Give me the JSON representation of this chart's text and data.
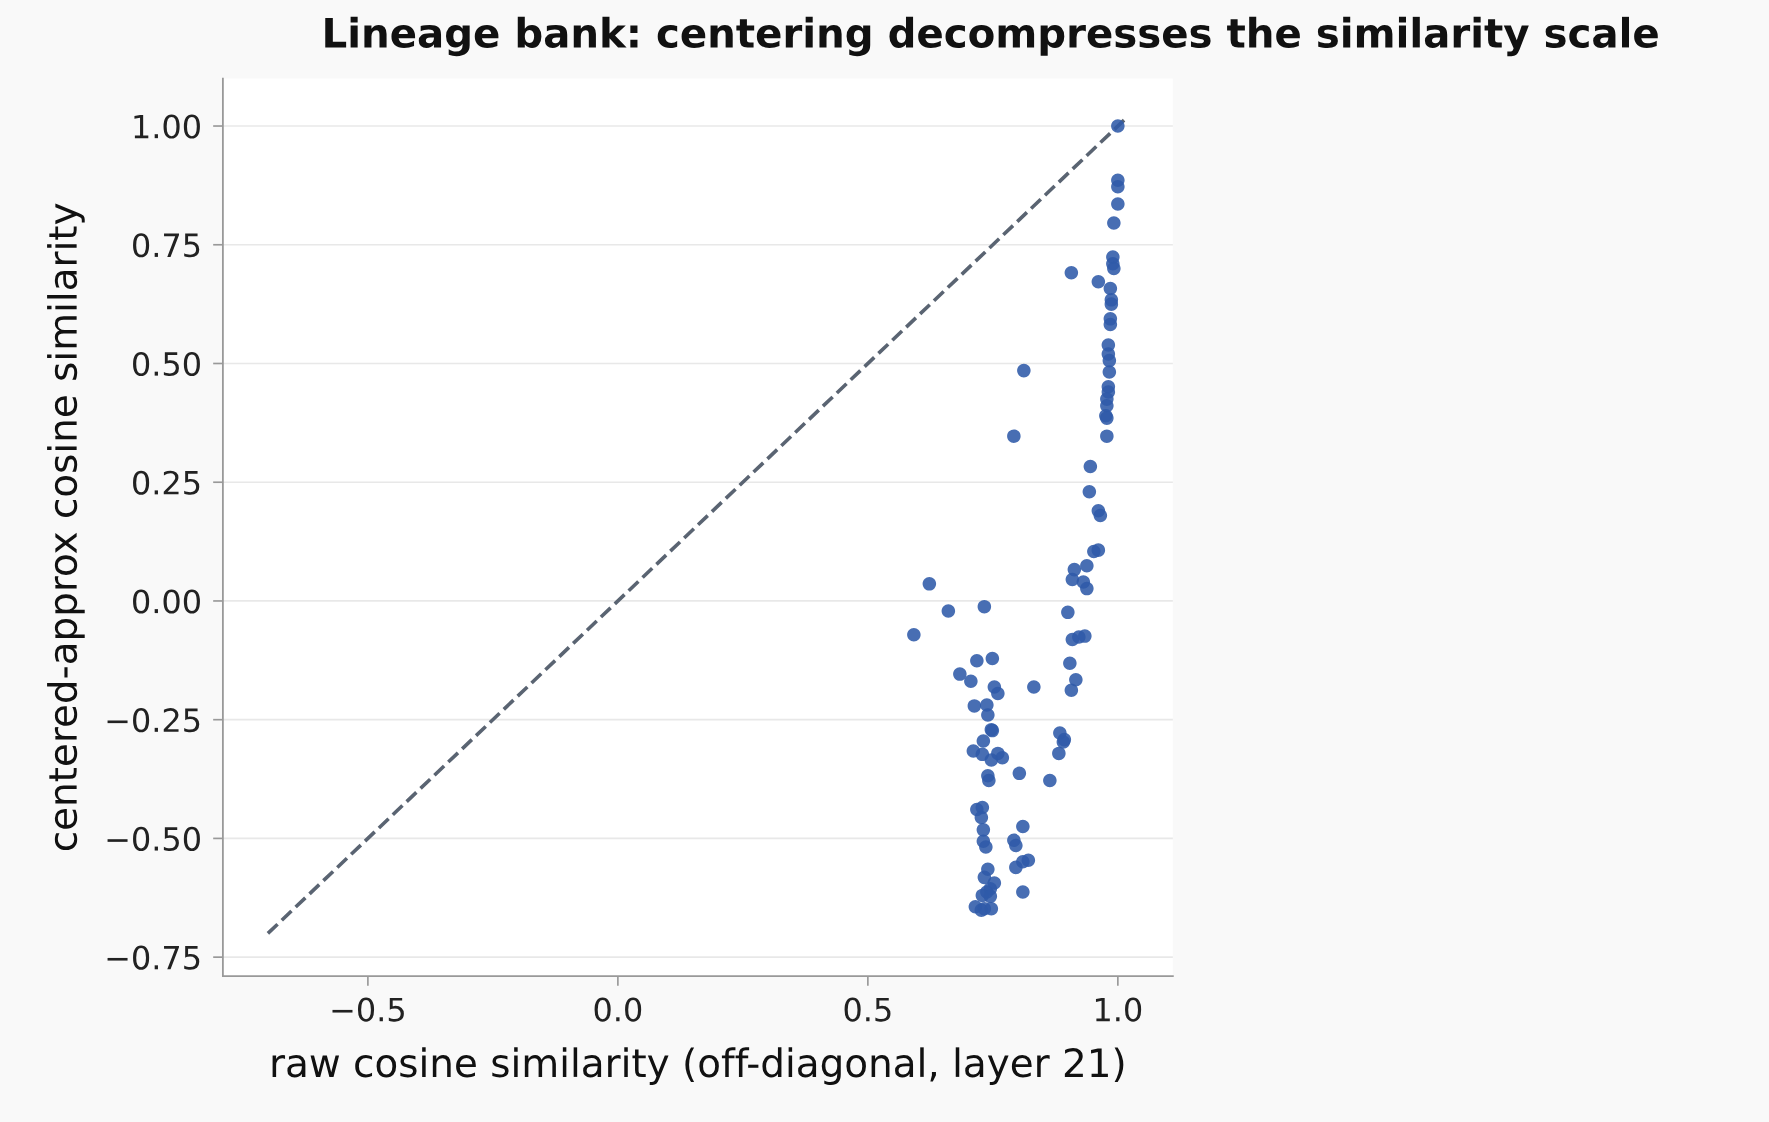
{
  "chart_data": {
    "type": "scatter",
    "title": "Lineage bank: centering decompresses the similarity scale",
    "xlabel": "raw cosine similarity (off-diagonal, layer 21)",
    "ylabel": "centered-approx cosine similarity",
    "xlim": [
      -0.79,
      1.11
    ],
    "ylim": [
      -0.79,
      1.1
    ],
    "xticks": [
      {
        "value": -0.5,
        "label": "−0.5"
      },
      {
        "value": 0,
        "label": "0.0"
      },
      {
        "value": 0.5,
        "label": "0.5"
      },
      {
        "value": 1.0,
        "label": "1.0"
      }
    ],
    "yticks": [
      {
        "value": -0.75,
        "label": "−0.75"
      },
      {
        "value": -0.5,
        "label": "−0.50"
      },
      {
        "value": -0.25,
        "label": "−0.25"
      },
      {
        "value": 0,
        "label": "0.00"
      },
      {
        "value": 0.25,
        "label": "0.25"
      },
      {
        "value": 0.5,
        "label": "0.50"
      },
      {
        "value": 0.75,
        "label": "0.75"
      },
      {
        "value": 1.0,
        "label": "1.00"
      }
    ],
    "grid": "y",
    "marker": "circle",
    "series": [
      {
        "type": "line",
        "color": "#5a6472",
        "line_style": "dashed",
        "marker": "none",
        "x": [
          -0.7,
          1.02
        ],
        "values": [
          -0.7,
          1.02
        ]
      },
      {
        "color": "#2f5aa8",
        "x": [
          1.0,
          1.0,
          1.0,
          1.0,
          0.992,
          0.907,
          0.961,
          0.99,
          0.99,
          0.992,
          0.985,
          0.987,
          0.987,
          0.985,
          0.985,
          0.981,
          0.981,
          0.983,
          0.983,
          0.812,
          0.981,
          0.981,
          0.978,
          0.978,
          0.976,
          0.978,
          0.792,
          0.978,
          0.945,
          0.943,
          0.961,
          0.965,
          0.952,
          0.961,
          0.938,
          0.913,
          0.909,
          0.931,
          0.938,
          0.623,
          0.661,
          0.733,
          0.9,
          0.592,
          0.909,
          0.922,
          0.934,
          0.718,
          0.749,
          0.684,
          0.706,
          0.904,
          0.916,
          0.753,
          0.76,
          0.832,
          0.907,
          0.713,
          0.738,
          0.74,
          0.747,
          0.749,
          0.884,
          0.893,
          0.891,
          0.882,
          0.731,
          0.711,
          0.729,
          0.76,
          0.769,
          0.747,
          0.803,
          0.864,
          0.74,
          0.742,
          0.718,
          0.729,
          0.727,
          0.731,
          0.731,
          0.736,
          0.81,
          0.792,
          0.796,
          0.81,
          0.821,
          0.796,
          0.74,
          0.733,
          0.745,
          0.738,
          0.729,
          0.745,
          0.81,
          0.715,
          0.727,
          0.733,
          0.747,
          0.753
        ],
        "values": [
          1.0,
          0.886,
          0.872,
          0.836,
          0.796,
          0.691,
          0.672,
          0.724,
          0.71,
          0.7,
          0.658,
          0.634,
          0.625,
          0.594,
          0.582,
          0.539,
          0.52,
          0.506,
          0.482,
          0.485,
          0.451,
          0.44,
          0.425,
          0.411,
          0.39,
          0.385,
          0.347,
          0.347,
          0.283,
          0.23,
          0.19,
          0.18,
          0.104,
          0.107,
          0.074,
          0.066,
          0.045,
          0.04,
          0.026,
          0.036,
          -0.021,
          -0.012,
          -0.024,
          -0.071,
          -0.081,
          -0.076,
          -0.074,
          -0.126,
          -0.121,
          -0.154,
          -0.169,
          -0.131,
          -0.166,
          -0.181,
          -0.195,
          -0.181,
          -0.188,
          -0.221,
          -0.219,
          -0.24,
          -0.271,
          -0.273,
          -0.278,
          -0.292,
          -0.297,
          -0.321,
          -0.295,
          -0.316,
          -0.323,
          -0.321,
          -0.33,
          -0.335,
          -0.363,
          -0.378,
          -0.368,
          -0.378,
          -0.439,
          -0.435,
          -0.456,
          -0.482,
          -0.506,
          -0.518,
          -0.475,
          -0.504,
          -0.515,
          -0.549,
          -0.546,
          -0.561,
          -0.565,
          -0.582,
          -0.606,
          -0.613,
          -0.62,
          -0.622,
          -0.613,
          -0.644,
          -0.651,
          -0.648,
          -0.648,
          -0.594
        ]
      }
    ]
  }
}
